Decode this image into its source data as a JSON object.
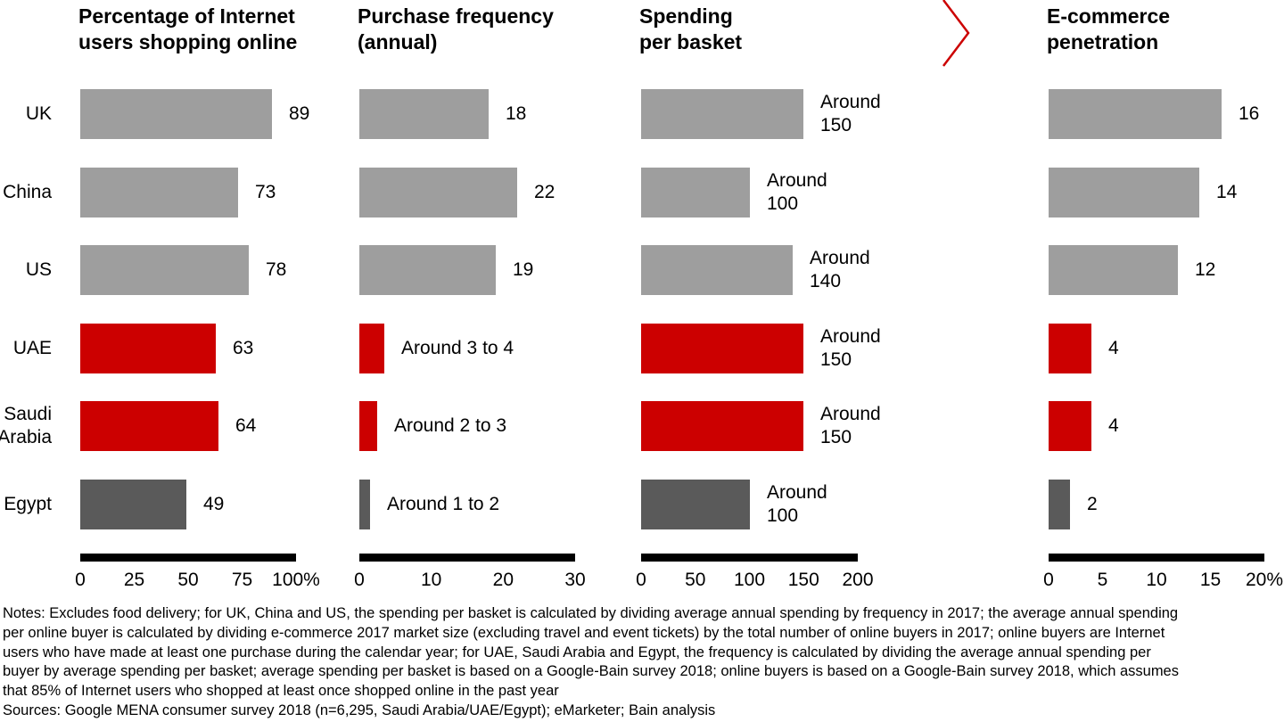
{
  "colors": {
    "gray": "#9E9E9E",
    "dark_gray": "#5A5A5A",
    "red": "#CC0000",
    "axis_black": "#000000"
  },
  "row_labels": [
    [
      "UK"
    ],
    [
      "China"
    ],
    [
      "US"
    ],
    [
      "UAE"
    ],
    [
      "Saudi",
      "Arabia"
    ],
    [
      "Egypt"
    ]
  ],
  "bar_colors": [
    "#9E9E9E",
    "#9E9E9E",
    "#9E9E9E",
    "#CC0000",
    "#CC0000",
    "#5A5A5A"
  ],
  "panels": [
    {
      "id": "pct-internet-users-shopping-online",
      "title_lines": [
        "Percentage of Internet",
        "users shopping online"
      ],
      "axis_max": 100,
      "ticks": [
        "0",
        "25",
        "50",
        "75",
        "100%"
      ],
      "bars": [
        {
          "value": 89,
          "label_lines": [
            "89"
          ]
        },
        {
          "value": 73,
          "label_lines": [
            "73"
          ]
        },
        {
          "value": 78,
          "label_lines": [
            "78"
          ]
        },
        {
          "value": 63,
          "label_lines": [
            "63"
          ]
        },
        {
          "value": 64,
          "label_lines": [
            "64"
          ]
        },
        {
          "value": 49,
          "label_lines": [
            "49"
          ]
        }
      ]
    },
    {
      "id": "purchase-frequency-annual",
      "title_lines": [
        "Purchase frequency",
        "(annual)"
      ],
      "axis_max": 30,
      "ticks": [
        "0",
        "10",
        "20",
        "30"
      ],
      "bars": [
        {
          "value": 18,
          "label_lines": [
            "18"
          ]
        },
        {
          "value": 22,
          "label_lines": [
            "22"
          ]
        },
        {
          "value": 19,
          "label_lines": [
            "19"
          ]
        },
        {
          "value": 3.5,
          "label_lines": [
            "Around 3 to 4"
          ]
        },
        {
          "value": 2.5,
          "label_lines": [
            "Around 2 to 3"
          ]
        },
        {
          "value": 1.5,
          "label_lines": [
            "Around 1 to 2"
          ]
        }
      ]
    },
    {
      "id": "spending-per-basket",
      "title_lines": [
        "Spending",
        "per basket"
      ],
      "axis_max": 200,
      "ticks": [
        "0",
        "50",
        "100",
        "150",
        "200"
      ],
      "bars": [
        {
          "value": 150,
          "label_lines": [
            "Around",
            "150"
          ]
        },
        {
          "value": 100,
          "label_lines": [
            "Around",
            "100"
          ]
        },
        {
          "value": 140,
          "label_lines": [
            "Around",
            "140"
          ]
        },
        {
          "value": 150,
          "label_lines": [
            "Around",
            "150"
          ]
        },
        {
          "value": 150,
          "label_lines": [
            "Around",
            "150"
          ]
        },
        {
          "value": 100,
          "label_lines": [
            "Around",
            "100"
          ]
        }
      ]
    },
    {
      "id": "e-commerce-penetration",
      "title_lines": [
        "E-commerce",
        "penetration"
      ],
      "axis_max": 20,
      "ticks": [
        "0",
        "5",
        "10",
        "15",
        "20%"
      ],
      "bars": [
        {
          "value": 16,
          "label_lines": [
            "16"
          ]
        },
        {
          "value": 14,
          "label_lines": [
            "14"
          ]
        },
        {
          "value": 12,
          "label_lines": [
            "12"
          ]
        },
        {
          "value": 4,
          "label_lines": [
            "4"
          ]
        },
        {
          "value": 4,
          "label_lines": [
            "4"
          ]
        },
        {
          "value": 2,
          "label_lines": [
            "2"
          ]
        }
      ]
    }
  ],
  "chevron": {
    "color": "#CC0000"
  },
  "notes": {
    "lines": [
      "Notes: Excludes food delivery; for UK, China and US, the spending per basket is calculated by dividing average annual spending by frequency in 2017; the average annual spending",
      "per online buyer is calculated by dividing e-commerce 2017 market size (excluding travel and event tickets) by the total number of online buyers in 2017; online buyers are Internet",
      "users who have made at least one purchase during the calendar year; for UAE, Saudi Arabia and Egypt, the frequency is calculated by dividing the average annual spending per",
      "buyer by average spending per basket; average spending per basket is based on a Google-Bain survey 2018; online buyers is based on a Google-Bain survey 2018, which assumes",
      "that 85% of Internet users who shopped at least once shopped online in the past year"
    ]
  },
  "sources": {
    "text": "Sources: Google MENA consumer survey 2018 (n=6,295, Saudi Arabia/UAE/Egypt); eMarketer; Bain analysis"
  },
  "chart_data": [
    {
      "type": "bar",
      "orientation": "horizontal",
      "title": "Percentage of Internet users shopping online",
      "categories": [
        "UK",
        "China",
        "US",
        "UAE",
        "Saudi Arabia",
        "Egypt"
      ],
      "values": [
        89,
        73,
        78,
        63,
        64,
        49
      ],
      "value_labels": [
        "89",
        "73",
        "78",
        "63",
        "64",
        "49"
      ],
      "bar_colors": [
        "#9E9E9E",
        "#9E9E9E",
        "#9E9E9E",
        "#CC0000",
        "#CC0000",
        "#5A5A5A"
      ],
      "xlim": [
        0,
        100
      ],
      "xticks": [
        "0",
        "25",
        "50",
        "75",
        "100%"
      ],
      "grid": false,
      "legend": false
    },
    {
      "type": "bar",
      "orientation": "horizontal",
      "title": "Purchase frequency (annual)",
      "categories": [
        "UK",
        "China",
        "US",
        "UAE",
        "Saudi Arabia",
        "Egypt"
      ],
      "values": [
        18,
        22,
        19,
        3.5,
        2.5,
        1.5
      ],
      "value_labels": [
        "18",
        "22",
        "19",
        "Around 3 to 4",
        "Around 2 to 3",
        "Around 1 to 2"
      ],
      "bar_colors": [
        "#9E9E9E",
        "#9E9E9E",
        "#9E9E9E",
        "#CC0000",
        "#CC0000",
        "#5A5A5A"
      ],
      "xlim": [
        0,
        30
      ],
      "xticks": [
        "0",
        "10",
        "20",
        "30"
      ],
      "grid": false,
      "legend": false
    },
    {
      "type": "bar",
      "orientation": "horizontal",
      "title": "Spending per basket",
      "categories": [
        "UK",
        "China",
        "US",
        "UAE",
        "Saudi Arabia",
        "Egypt"
      ],
      "values": [
        150,
        100,
        140,
        150,
        150,
        100
      ],
      "value_labels": [
        "Around 150",
        "Around 100",
        "Around 140",
        "Around 150",
        "Around 150",
        "Around 100"
      ],
      "bar_colors": [
        "#9E9E9E",
        "#9E9E9E",
        "#9E9E9E",
        "#CC0000",
        "#CC0000",
        "#5A5A5A"
      ],
      "xlim": [
        0,
        200
      ],
      "xticks": [
        "0",
        "50",
        "100",
        "150",
        "200"
      ],
      "grid": false,
      "legend": false
    },
    {
      "type": "bar",
      "orientation": "horizontal",
      "title": "E-commerce penetration",
      "categories": [
        "UK",
        "China",
        "US",
        "UAE",
        "Saudi Arabia",
        "Egypt"
      ],
      "values": [
        16,
        14,
        12,
        4,
        4,
        2
      ],
      "value_labels": [
        "16",
        "14",
        "12",
        "4",
        "4",
        "2"
      ],
      "bar_colors": [
        "#9E9E9E",
        "#9E9E9E",
        "#9E9E9E",
        "#CC0000",
        "#CC0000",
        "#5A5A5A"
      ],
      "xlim": [
        0,
        20
      ],
      "xticks": [
        "0",
        "5",
        "10",
        "15",
        "20%"
      ],
      "grid": false,
      "legend": false
    }
  ]
}
